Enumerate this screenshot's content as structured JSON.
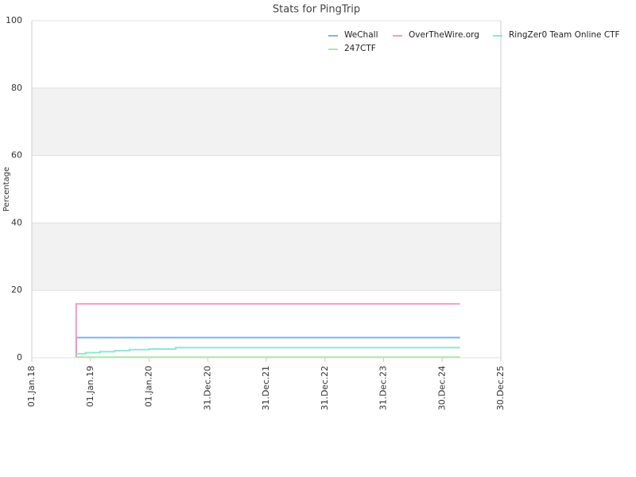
{
  "chart_data": {
    "type": "line",
    "title": "Stats for PingTrip",
    "y_label": "Percentage",
    "xlim": [
      "2018-01-01",
      "2025-12-30"
    ],
    "xticks": [
      {
        "value": "2018-01-01",
        "label": "01.Jan.18"
      },
      {
        "value": "2019-01-01",
        "label": "01.Jan.19"
      },
      {
        "value": "2020-01-01",
        "label": "01.Jan.20"
      },
      {
        "value": "2020-12-31",
        "label": "31.Dec.20"
      },
      {
        "value": "2021-12-31",
        "label": "31.Dec.21"
      },
      {
        "value": "2022-12-31",
        "label": "31.Dec.22"
      },
      {
        "value": "2023-12-31",
        "label": "31.Dec.23"
      },
      {
        "value": "2024-12-30",
        "label": "30.Dec.24"
      },
      {
        "value": "2025-12-30",
        "label": "30.Dec.25"
      }
    ],
    "ylim": [
      0,
      100
    ],
    "yticks": [
      0,
      20,
      40,
      60,
      80,
      100
    ],
    "grid": true,
    "bands": [
      [
        20,
        40
      ],
      [
        60,
        80
      ]
    ],
    "band_color": "#f2f2f2",
    "legend": "top-right",
    "series": [
      {
        "name": "WeChall",
        "color": "#7cb5ec",
        "x": [
          "2018-10-05",
          "2018-10-05",
          "2025-04-20"
        ],
        "values": [
          0,
          6,
          6
        ]
      },
      {
        "name": "OverTheWire.org",
        "color": "#f29ac4",
        "x": [
          "2018-10-04",
          "2018-10-04",
          "2025-04-20"
        ],
        "values": [
          0,
          16,
          16
        ]
      },
      {
        "name": "RingZer0 Team Online CTF",
        "color": "#8ee8cf",
        "x": [
          "2018-10-05",
          "2018-12-01",
          "2018-12-01",
          "2019-03-01",
          "2019-03-01",
          "2019-06-01",
          "2019-06-01",
          "2019-09-01",
          "2019-09-01",
          "2020-01-01",
          "2020-01-01",
          "2020-06-15",
          "2020-06-15",
          "2025-04-20"
        ],
        "values": [
          1.2,
          1.2,
          1.5,
          1.5,
          1.8,
          1.8,
          2.1,
          2.1,
          2.4,
          2.4,
          2.6,
          2.6,
          3,
          3
        ]
      },
      {
        "name": "247CTF",
        "color": "#aee6a8",
        "x": [
          "2018-10-05",
          "2025-04-20"
        ],
        "values": [
          0.2,
          0.2
        ]
      }
    ]
  }
}
